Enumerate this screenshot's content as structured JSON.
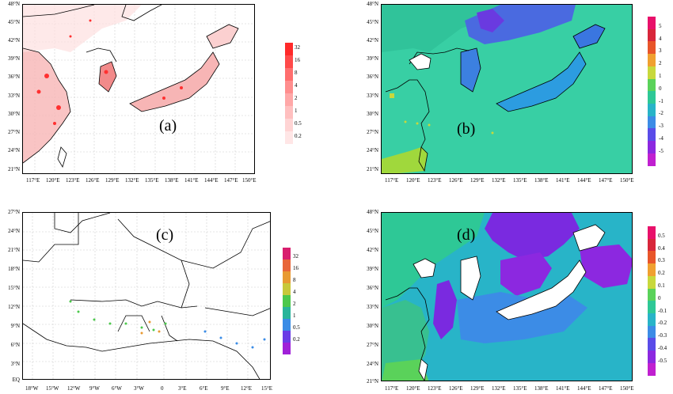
{
  "panels": [
    {
      "id": "a",
      "label": "(a)",
      "lat_ticks": [
        "48°N",
        "45°N",
        "42°N",
        "39°N",
        "36°N",
        "33°N",
        "30°N",
        "27°N",
        "24°N",
        "21°N"
      ],
      "lon_ticks": [
        "117°E",
        "120°E",
        "123°E",
        "126°E",
        "129°E",
        "132°E",
        "135°E",
        "138°E",
        "141°E",
        "144°E",
        "147°E",
        "150°E"
      ],
      "colorbar": {
        "ticks": [
          "32",
          "16",
          "8",
          "4",
          "2",
          "1",
          "0.5",
          "0.2"
        ],
        "colors": [
          "#ff2a2a",
          "#ff4a4a",
          "#ff6e6e",
          "#ff8e8e",
          "#ffa8a8",
          "#ffbfbf",
          "#ffd4d4",
          "#ffe6e6"
        ]
      }
    },
    {
      "id": "b",
      "label": "(b)",
      "lat_ticks": [
        "48°N",
        "45°N",
        "42°N",
        "39°N",
        "36°N",
        "33°N",
        "30°N",
        "27°N",
        "24°N",
        "21°N"
      ],
      "lon_ticks": [
        "117°E",
        "120°E",
        "123°E",
        "126°E",
        "129°E",
        "132°E",
        "135°E",
        "138°E",
        "141°E",
        "144°E",
        "147°E",
        "150°E"
      ],
      "colorbar": {
        "ticks": [
          "5",
          "4",
          "3",
          "2",
          "1",
          "0",
          "-1",
          "-2",
          "-3",
          "-4",
          "-5"
        ],
        "colors": [
          "#e8106a",
          "#d8263a",
          "#e8552a",
          "#f0a030",
          "#c8d83c",
          "#5ad25a",
          "#2ec896",
          "#28b4c8",
          "#3c8ce6",
          "#5a4ce8",
          "#8c28e0",
          "#c020d0"
        ]
      }
    },
    {
      "id": "c",
      "label": "(c)",
      "lat_ticks": [
        "27°N",
        "24°N",
        "21°N",
        "18°N",
        "15°N",
        "12°N",
        "9°N",
        "6°N",
        "3°N",
        "EQ"
      ],
      "lon_ticks": [
        "18°W",
        "15°W",
        "12°W",
        "9°W",
        "6°W",
        "3°W",
        "0",
        "3°E",
        "6°E",
        "9°E",
        "12°E",
        "15°E"
      ],
      "colorbar": {
        "ticks": [
          "32",
          "16",
          "8",
          "4",
          "2",
          "1",
          "0.5",
          "0.2"
        ],
        "colors": [
          "#d81e6e",
          "#e8663a",
          "#e89a32",
          "#c8c83a",
          "#4cc84c",
          "#28b49a",
          "#3a8ce6",
          "#6a3ce6",
          "#a020d8"
        ]
      }
    },
    {
      "id": "d",
      "label": "(d)",
      "lat_ticks": [
        "48°N",
        "45°N",
        "42°N",
        "39°N",
        "36°N",
        "33°N",
        "30°N",
        "27°N",
        "24°N",
        "21°N"
      ],
      "lon_ticks": [
        "117°E",
        "120°E",
        "123°E",
        "126°E",
        "129°E",
        "132°E",
        "135°E",
        "138°E",
        "141°E",
        "144°E",
        "147°E",
        "150°E"
      ],
      "colorbar": {
        "ticks": [
          "0.5",
          "0.4",
          "0.3",
          "0.2",
          "0.1",
          "0",
          "-0.1",
          "-0.2",
          "-0.3",
          "-0.4",
          "-0.5"
        ],
        "colors": [
          "#e8106a",
          "#d8263a",
          "#e8552a",
          "#f0a030",
          "#c8d83c",
          "#5ad25a",
          "#2ec896",
          "#28b4c8",
          "#3c8ce6",
          "#5a4ce8",
          "#8c28e0",
          "#c020d0"
        ]
      }
    }
  ]
}
